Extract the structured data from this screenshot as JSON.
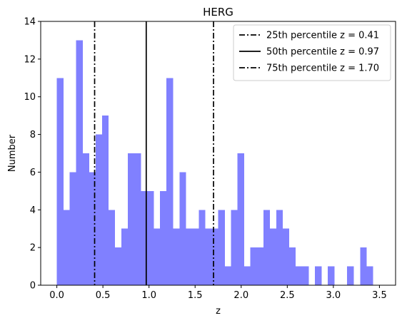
{
  "chart_data": {
    "type": "bar",
    "title": "HERG",
    "xlabel": "z",
    "ylabel": "Number",
    "xlim": [
      -0.175,
      3.675
    ],
    "ylim": [
      0,
      14
    ],
    "xticks": [
      0.0,
      0.5,
      1.0,
      1.5,
      2.0,
      2.5,
      3.0,
      3.5
    ],
    "xtick_labels": [
      "0.0",
      "0.5",
      "1.0",
      "1.5",
      "2.0",
      "2.5",
      "3.0",
      "3.5"
    ],
    "yticks": [
      0,
      2,
      4,
      6,
      8,
      10,
      12,
      14
    ],
    "ytick_labels": [
      "0",
      "2",
      "4",
      "6",
      "8",
      "10",
      "12",
      "14"
    ],
    "bar_color": "#8080ff",
    "bin_start": 0.0,
    "bin_width": 0.07,
    "values": [
      11,
      4,
      6,
      13,
      7,
      6,
      8,
      9,
      4,
      2,
      3,
      7,
      7,
      5,
      5,
      3,
      5,
      11,
      3,
      6,
      3,
      3,
      4,
      3,
      3,
      4,
      1,
      4,
      7,
      1,
      2,
      2,
      4,
      3,
      4,
      3,
      2,
      1,
      1,
      0,
      1,
      0,
      1,
      0,
      0,
      1,
      0,
      2,
      1,
      0
    ],
    "vlines": [
      {
        "x": 0.41,
        "style": "dashdot",
        "label": "25th percentile z = 0.41"
      },
      {
        "x": 0.97,
        "style": "solid",
        "label": "50th percentile z = 0.97"
      },
      {
        "x": 1.7,
        "style": "dashdot",
        "label": "75th percentile z = 1.70"
      }
    ],
    "legend": {
      "position": "upper-right"
    },
    "grid": false
  }
}
